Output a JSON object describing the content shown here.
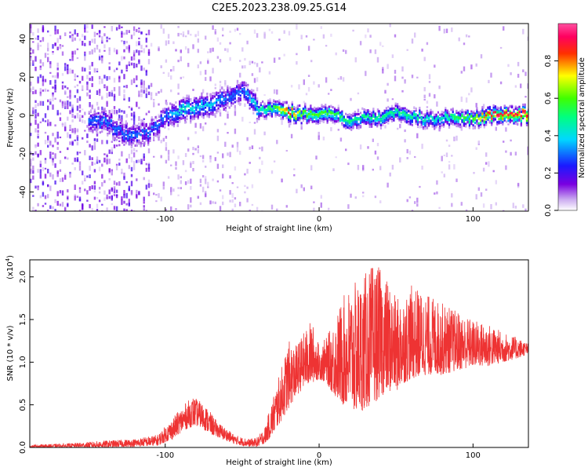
{
  "title": "C2E5.2023.238.09.25.G14",
  "colors": {
    "snr_line": "#ee3333",
    "axis": "#000000",
    "background": "#ffffff"
  },
  "chart_data": [
    {
      "type": "heatmap",
      "xlabel": "Height of straight line (km)",
      "ylabel": "Frequency (Hz)",
      "xlim": [
        -188,
        136
      ],
      "ylim": [
        -50,
        48
      ],
      "xticks": [
        -100,
        0,
        100
      ],
      "yticks": [
        -40,
        -20,
        0,
        20,
        40
      ],
      "grid": false,
      "colorbar": {
        "label": "Normalized spectral amplitude",
        "range": [
          0.0,
          1.0
        ],
        "ticks": [
          "0.0",
          "0.2",
          "0.4",
          "0.6",
          "0.8"
        ],
        "colormap": "rainbow (white-purple-blue-cyan-green-yellow-red)"
      },
      "ridge": {
        "description": "dominant frequency ridge",
        "x": [
          -140,
          -125,
          -110,
          -100,
          -90,
          -80,
          -70,
          -60,
          -50,
          -40,
          -30,
          -20,
          -10,
          0,
          10,
          20,
          30,
          40,
          50,
          60,
          70,
          80,
          90,
          100,
          110,
          120,
          130
        ],
        "freq": [
          -2,
          -10,
          -8,
          0,
          3,
          5,
          7,
          10,
          13,
          4,
          4,
          2,
          1,
          2,
          1,
          -2,
          -1,
          -1,
          2,
          0,
          -2,
          -1,
          -1,
          -1,
          1,
          1,
          1
        ],
        "amplitude": [
          0.3,
          0.3,
          0.3,
          0.3,
          0.45,
          0.4,
          0.4,
          0.3,
          0.3,
          0.45,
          0.55,
          0.85,
          0.6,
          0.6,
          0.55,
          0.5,
          0.5,
          0.5,
          0.5,
          0.5,
          0.45,
          0.45,
          0.55,
          0.6,
          0.9,
          0.9,
          0.9
        ]
      }
    },
    {
      "type": "line",
      "xlabel": "Height of straight line (km)",
      "ylabel": "SNR (10 * v/v)",
      "ylabel_scale": "(x10",
      "ylabel_scale_exp": "4",
      "ylabel_scale_close": ")",
      "xlim": [
        -188,
        136
      ],
      "ylim": [
        0.0,
        2.2
      ],
      "xticks": [
        -100,
        0,
        100
      ],
      "yticks": [
        "0.0",
        "0.5",
        "1.0",
        "1.5",
        "2.0"
      ],
      "grid": false,
      "series": [
        {
          "envelope_x": [
            -188,
            -160,
            -140,
            -120,
            -105,
            -95,
            -88,
            -82,
            -78,
            -74,
            -70,
            -66,
            -60,
            -55,
            -50,
            -45,
            -40,
            -35,
            -30,
            -25,
            -20,
            -15,
            -10,
            -5,
            0,
            5,
            10,
            15,
            20,
            25,
            30,
            35,
            40,
            45,
            50,
            55,
            60,
            70,
            80,
            90,
            100,
            110,
            120,
            130,
            136
          ],
          "envelope_min": [
            0.0,
            0.0,
            0.0,
            0.01,
            0.02,
            0.1,
            0.2,
            0.25,
            0.25,
            0.2,
            0.15,
            0.12,
            0.08,
            0.04,
            0.02,
            0.01,
            0.01,
            0.05,
            0.15,
            0.3,
            0.45,
            0.6,
            0.7,
            0.75,
            0.8,
            0.75,
            0.6,
            0.5,
            0.45,
            0.4,
            0.45,
            0.5,
            0.6,
            0.65,
            0.65,
            0.75,
            0.8,
            0.85,
            0.85,
            0.9,
            0.95,
            0.95,
            1.0,
            1.05,
            1.1
          ],
          "envelope_max": [
            0.03,
            0.05,
            0.08,
            0.1,
            0.15,
            0.35,
            0.5,
            0.6,
            0.55,
            0.5,
            0.4,
            0.3,
            0.22,
            0.15,
            0.12,
            0.1,
            0.12,
            0.25,
            0.6,
            0.9,
            1.25,
            1.2,
            1.35,
            1.5,
            1.2,
            1.3,
            1.5,
            1.75,
            1.9,
            1.95,
            2.05,
            2.15,
            2.1,
            1.95,
            1.75,
            1.8,
            1.9,
            1.8,
            1.7,
            1.6,
            1.5,
            1.45,
            1.35,
            1.28,
            1.22
          ]
        }
      ]
    }
  ]
}
